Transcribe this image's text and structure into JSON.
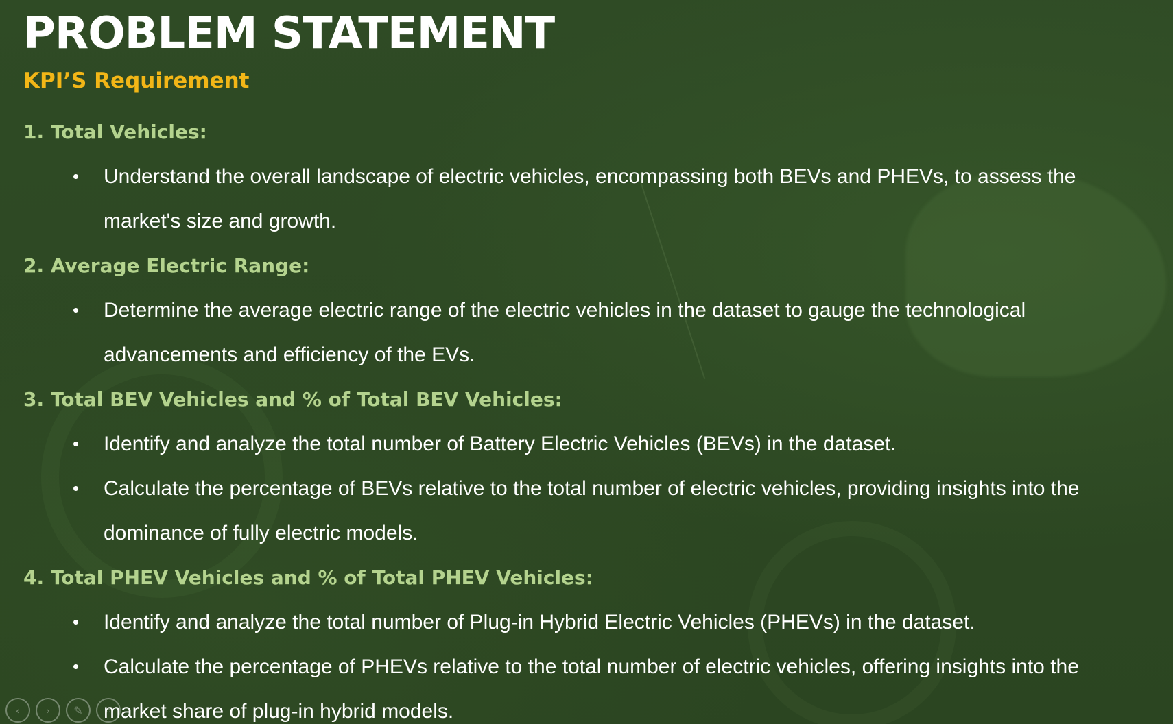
{
  "slide": {
    "title": "PROBLEM STATEMENT",
    "subtitle": "KPI’S Requirement",
    "colors": {
      "background": "#2e4a24",
      "title": "#ffffff",
      "subtitle": "#f2b617",
      "heading": "#b4d38e",
      "body": "#ffffff"
    },
    "kpis": [
      {
        "heading": "1. Total Vehicles:",
        "bullets": [
          "Understand the overall landscape of electric vehicles, encompassing both BEVs and PHEVs, to assess the market's size and growth."
        ]
      },
      {
        "heading": "2. Average Electric Range:",
        "bullets": [
          "Determine the average electric range of the electric vehicles in the dataset to gauge the technological advancements and efficiency of the EVs."
        ]
      },
      {
        "heading": "3. Total BEV Vehicles and % of Total BEV Vehicles:",
        "bullets": [
          "Identify and analyze the total number of Battery Electric Vehicles (BEVs) in the dataset.",
          "Calculate the percentage of BEVs relative to the total number of electric vehicles, providing insights into the dominance of fully electric models."
        ]
      },
      {
        "heading": "4. Total PHEV Vehicles and % of Total PHEV Vehicles:",
        "bullets": [
          "Identify and analyze the total number of Plug-in Hybrid Electric Vehicles (PHEVs) in the dataset.",
          "Calculate the percentage of PHEVs relative to the total number of electric vehicles, offering insights into the market share of plug-in hybrid models."
        ]
      }
    ],
    "bullet_symbol": "•"
  },
  "nav": {
    "icons": [
      "previous-slide-icon",
      "next-slide-icon",
      "pen-icon",
      "zoom-icon"
    ],
    "glyphs": [
      "‹",
      "›",
      "✎",
      "⌕"
    ]
  }
}
